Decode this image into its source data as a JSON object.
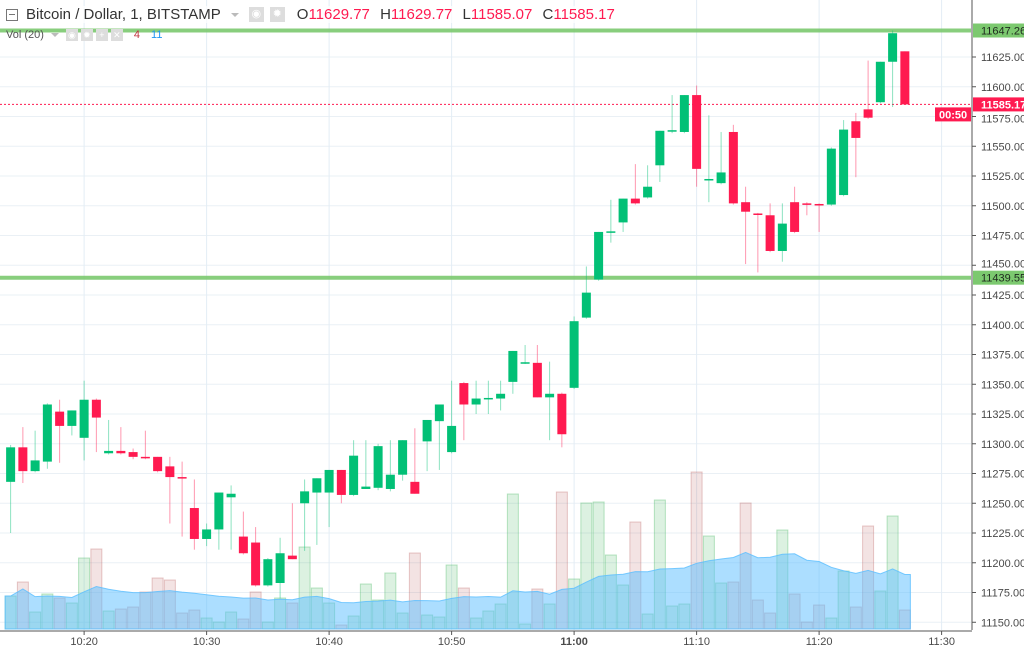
{
  "header": {
    "symbol_title": "Bitcoin / Dollar, 1, BITSTAMP",
    "ohlc": [
      {
        "key": "O",
        "value": "11629.77"
      },
      {
        "key": "H",
        "value": "11629.77"
      },
      {
        "key": "L",
        "value": "11585.07"
      },
      {
        "key": "C",
        "value": "11585.17"
      }
    ],
    "icons": [
      "collapse-icon",
      "dropdown-caret-icon",
      "eye-icon",
      "gear-icon"
    ]
  },
  "volume_legend": {
    "label": "Vol (20)",
    "current": "4",
    "ma": "11",
    "icons": [
      "dropdown-caret-icon",
      "eye-icon",
      "gear-icon",
      "plus-icon",
      "close-icon"
    ]
  },
  "colors": {
    "up": "#02c076",
    "down": "#ff1a50",
    "level_line": "#7cc96f",
    "last_price": "#ff1a50",
    "volume_ma": "#7fccff"
  },
  "chart_data": {
    "type": "candlestick",
    "xlim": [
      "10:13:08",
      "11:32:24"
    ],
    "ylim": [
      11143.5,
      11672.9
    ],
    "grid": true,
    "x_ticks": [
      "10:20",
      "10:30",
      "10:40",
      "10:50",
      "11:00",
      "11:10",
      "11:20",
      "11:30"
    ],
    "y_ticks": [
      "11150.00",
      "11175.00",
      "11200.00",
      "11225.00",
      "11250.00",
      "11275.00",
      "11300.00",
      "11325.00",
      "11350.00",
      "11375.00",
      "11400.00",
      "11425.00",
      "11450.00",
      "11475.00",
      "11500.00",
      "11525.00",
      "11550.00",
      "11575.00",
      "11600.00",
      "11625.00"
    ],
    "levels": [
      {
        "label": "11647.26",
        "value": 11647.26
      },
      {
        "label": "11439.55",
        "value": 11439.55
      }
    ],
    "last_price": {
      "label": "11585.17",
      "value": 11585.17,
      "countdown": "00:50"
    },
    "volume_ma_period": 20,
    "candle_fields": [
      "time",
      "open",
      "high",
      "low",
      "close",
      "volume"
    ],
    "candles": [
      [
        "10:14",
        11268,
        11299,
        11225,
        11297,
        6.6
      ],
      [
        "10:15",
        11297,
        11314,
        11267,
        11277,
        9.4
      ],
      [
        "10:16",
        11277,
        11311,
        11276,
        11286,
        3.4
      ],
      [
        "10:17",
        11285,
        11334,
        11279,
        11333,
        7.0
      ],
      [
        "10:18",
        11327,
        11337,
        11284,
        11315,
        6.2
      ],
      [
        "10:19",
        11315,
        11328,
        11307,
        11328,
        5.2
      ],
      [
        "10:20",
        11305,
        11353,
        11286,
        11337,
        14.2
      ],
      [
        "10:21",
        11337,
        11338,
        11293,
        11322,
        16.0
      ],
      [
        "10:22",
        11292,
        11320,
        11291,
        11294,
        3.6
      ],
      [
        "10:23",
        11294,
        11314,
        11291,
        11292,
        4.0
      ],
      [
        "10:24",
        11293,
        11296,
        11287,
        11289,
        4.4
      ],
      [
        "10:25",
        11289,
        11311,
        11287,
        11288,
        7.4
      ],
      [
        "10:26",
        11289,
        11289,
        11276,
        11277,
        10.2
      ],
      [
        "10:27",
        11281,
        11289,
        11233,
        11272,
        9.8
      ],
      [
        "10:28",
        11272,
        11285,
        11222,
        11271,
        3.2
      ],
      [
        "10:29",
        11246,
        11270,
        11211,
        11220,
        3.8
      ],
      [
        "10:30",
        11220,
        11233,
        11214,
        11228,
        2.2
      ],
      [
        "10:31",
        11228,
        11259,
        11211,
        11259,
        1.4
      ],
      [
        "10:32",
        11255,
        11265,
        11211,
        11258,
        3.4
      ],
      [
        "10:33",
        11222,
        11243,
        11207,
        11208,
        2.0
      ],
      [
        "10:34",
        11217,
        11230,
        11180,
        11181,
        7.4
      ],
      [
        "10:35",
        11181,
        11204,
        11180,
        11203,
        1.4
      ],
      [
        "10:36",
        11183,
        11221,
        11170,
        11208,
        6.2
      ],
      [
        "10:37",
        11206,
        11250,
        11203,
        11203,
        5.2
      ],
      [
        "10:38",
        11250,
        11270,
        11210,
        11260,
        16.4
      ],
      [
        "10:39",
        11259,
        11271,
        11215,
        11271,
        8.2
      ],
      [
        "10:40",
        11259,
        11278,
        11230,
        11278,
        5.2
      ],
      [
        "10:41",
        11278,
        11278,
        11250,
        11257,
        0.8
      ],
      [
        "10:42",
        11257,
        11303,
        11256,
        11290,
        2.6
      ],
      [
        "10:43",
        11262,
        11303,
        11262,
        11264,
        9.0
      ],
      [
        "10:44",
        11263,
        11300,
        11261,
        11298,
        5.8
      ],
      [
        "10:45",
        11262,
        11303,
        11260,
        11274,
        11.2
      ],
      [
        "10:46",
        11274,
        11303,
        11269,
        11303,
        3.2
      ],
      [
        "10:47",
        11268,
        11313,
        11258,
        11258,
        15.2
      ],
      [
        "10:48",
        11302,
        11320,
        11277,
        11320,
        2.8
      ],
      [
        "10:49",
        11319,
        11333,
        11278,
        11333,
        2.4
      ],
      [
        "10:50",
        11293,
        11353,
        11292,
        11315,
        12.8
      ],
      [
        "10:51",
        11351,
        11352,
        11303,
        11333,
        8.2
      ],
      [
        "10:52",
        11333,
        11353,
        11325,
        11338,
        2.2
      ],
      [
        "10:53",
        11338,
        11353,
        11325,
        11338.5,
        3.6
      ],
      [
        "10:54",
        11338,
        11353,
        11328,
        11342,
        5.0
      ],
      [
        "10:55",
        11352,
        11378,
        11342,
        11378,
        27.0
      ],
      [
        "10:56",
        11368,
        11383,
        11367,
        11368.5,
        1.0
      ],
      [
        "10:57",
        11368,
        11383,
        11339,
        11339,
        8.0
      ],
      [
        "10:58",
        11339,
        11369,
        11303,
        11342,
        5.0
      ],
      [
        "10:59",
        11342,
        11343,
        11297,
        11308,
        27.4
      ],
      [
        "11:00",
        11347,
        11407,
        11346,
        11403,
        10.0
      ],
      [
        "11:01",
        11406,
        11449,
        11405,
        11427,
        25.2
      ],
      [
        "11:02",
        11438,
        11478,
        11437,
        11478,
        25.4
      ],
      [
        "11:03",
        11478,
        11505,
        11469,
        11478.5,
        14.8
      ],
      [
        "11:04",
        11486,
        11506,
        11478,
        11506,
        8.8
      ],
      [
        "11:05",
        11506,
        11535,
        11501,
        11502,
        21.4
      ],
      [
        "11:06",
        11507,
        11534,
        11506,
        11516,
        3.0
      ],
      [
        "11:07",
        11534,
        11563,
        11520,
        11563,
        25.8
      ],
      [
        "11:08",
        11563,
        11593,
        11561,
        11563.5,
        4.6
      ],
      [
        "11:09",
        11562,
        11593,
        11561,
        11593,
        5.0
      ],
      [
        "11:10",
        11593,
        11601,
        11516,
        11531,
        31.4
      ],
      [
        "11:11",
        11522,
        11576,
        11503,
        11522.5,
        18.6
      ],
      [
        "11:12",
        11519,
        11562,
        11518,
        11528,
        9.2
      ],
      [
        "11:13",
        11562,
        11568,
        11501,
        11502,
        9.4
      ],
      [
        "11:14",
        11503,
        11516,
        11451,
        11495,
        25.2
      ],
      [
        "11:15",
        11493.5,
        11494,
        11444,
        11493,
        5.8
      ],
      [
        "11:16",
        11492,
        11502,
        11461,
        11462,
        3.2
      ],
      [
        "11:17",
        11462,
        11502,
        11453,
        11485,
        19.8
      ],
      [
        "11:18",
        11503,
        11516,
        11477,
        11478,
        7.0
      ],
      [
        "11:19",
        11502,
        11503,
        11492,
        11501,
        1.4
      ],
      [
        "11:20",
        11501.5,
        11502,
        11478,
        11501,
        4.8
      ],
      [
        "11:21",
        11501,
        11549,
        11500,
        11548,
        2.2
      ],
      [
        "11:22",
        11509,
        11572,
        11508,
        11564,
        11.6
      ],
      [
        "11:23",
        11571,
        11578,
        11524,
        11557,
        4.4
      ],
      [
        "11:24",
        11581,
        11622,
        11573,
        11574,
        20.6
      ],
      [
        "11:25",
        11587,
        11621,
        11586,
        11621,
        7.6
      ],
      [
        "11:26",
        11621,
        11647.26,
        11583,
        11645,
        22.6
      ],
      [
        "11:27",
        11629.77,
        11629.77,
        11585.07,
        11585.17,
        3.8
      ]
    ]
  }
}
